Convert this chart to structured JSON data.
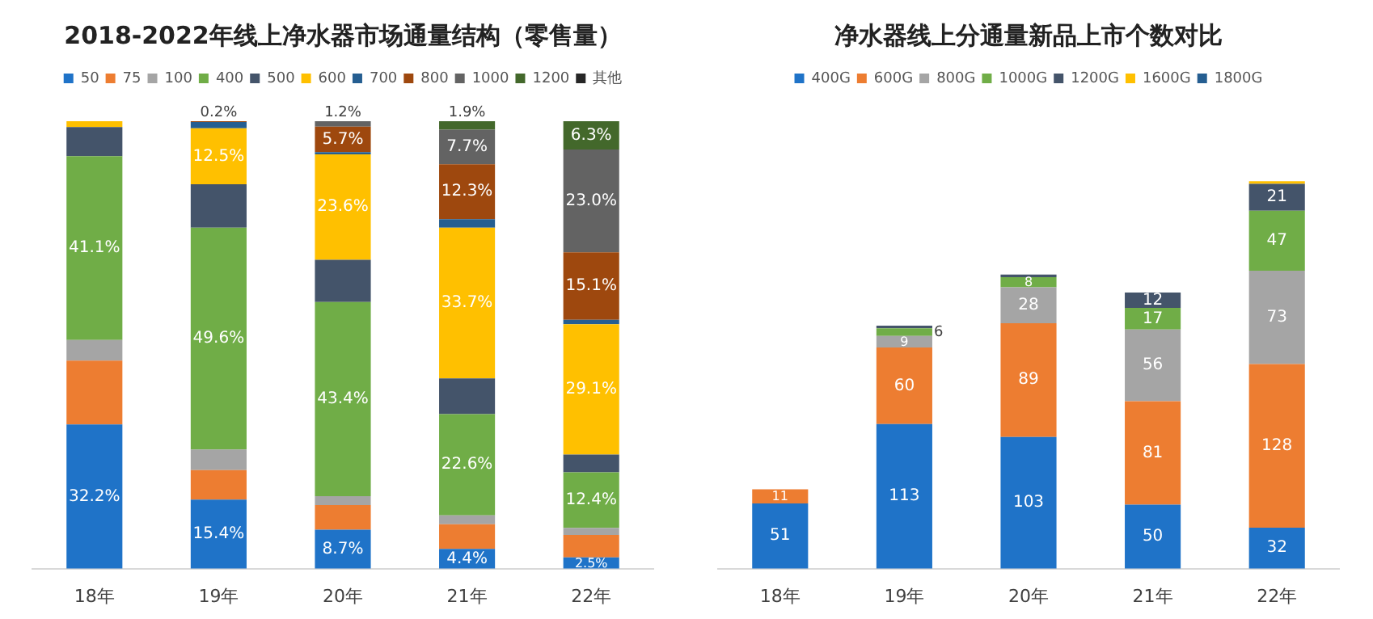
{
  "chart_data": [
    {
      "type": "bar",
      "title": "2018-2022年线上净水器市场通量结构（零售量）",
      "categories": [
        "18年",
        "19年",
        "20年",
        "21年",
        "22年"
      ],
      "stacked": true,
      "ylim": [
        0,
        100
      ],
      "tick_labels": "x",
      "legend": "top",
      "grid": false,
      "series": [
        {
          "name": "50",
          "color": "#1f73c8",
          "values": [
            32.2,
            15.4,
            8.7,
            4.4,
            2.5
          ],
          "value_labels": [
            "32.2%",
            "15.4%",
            "8.7%",
            "4.4%",
            "2.5%"
          ]
        },
        {
          "name": "75",
          "color": "#ed7d31",
          "values": [
            14.3,
            6.6,
            5.5,
            5.5,
            5.0
          ],
          "value_labels": [
            null,
            null,
            null,
            null,
            null
          ]
        },
        {
          "name": "100",
          "color": "#a5a5a5",
          "values": [
            4.6,
            4.6,
            2.0,
            2.0,
            1.6
          ],
          "value_labels": [
            null,
            null,
            null,
            null,
            null
          ]
        },
        {
          "name": "400",
          "color": "#70ad47",
          "values": [
            41.1,
            49.6,
            43.4,
            22.6,
            12.4
          ],
          "value_labels": [
            "41.1%",
            "49.6%",
            "43.4%",
            "22.6%",
            "12.4%"
          ]
        },
        {
          "name": "500",
          "color": "#44546a",
          "values": [
            6.5,
            9.7,
            9.4,
            8.0,
            4.0
          ],
          "value_labels": [
            null,
            null,
            null,
            null,
            null
          ]
        },
        {
          "name": "600",
          "color": "#ffc000",
          "values": [
            1.3,
            12.5,
            23.6,
            33.7,
            29.1
          ],
          "value_labels": [
            null,
            "12.5%",
            "23.6%",
            "33.7%",
            "29.1%"
          ]
        },
        {
          "name": "700",
          "color": "#255e91",
          "values": [
            0,
            1.4,
            0.5,
            1.9,
            1.0
          ],
          "value_labels": [
            null,
            null,
            null,
            null,
            null
          ]
        },
        {
          "name": "800",
          "color": "#9e480e",
          "values": [
            0,
            0.2,
            5.7,
            12.3,
            15.1
          ],
          "value_labels": [
            null,
            "0.2%",
            "5.7%",
            "12.3%",
            "15.1%"
          ]
        },
        {
          "name": "1000",
          "color": "#636363",
          "values": [
            0,
            0,
            1.2,
            7.7,
            23.0
          ],
          "value_labels": [
            null,
            null,
            "1.2%",
            "7.7%",
            "23.0%"
          ]
        },
        {
          "name": "1200",
          "color": "#43682b",
          "values": [
            0,
            0,
            0,
            1.9,
            6.3
          ],
          "value_labels": [
            null,
            null,
            null,
            "1.9%",
            "6.3%"
          ]
        },
        {
          "name": "其他",
          "color": "#262626",
          "values": [
            0,
            0,
            0,
            0,
            0
          ],
          "value_labels": [
            null,
            null,
            null,
            null,
            null
          ]
        }
      ]
    },
    {
      "type": "bar",
      "title": "净水器线上分通量新品上市个数对比",
      "categories": [
        "18年",
        "19年",
        "20年",
        "21年",
        "22年"
      ],
      "stacked": true,
      "tick_labels": "x",
      "legend": "top",
      "grid": false,
      "series": [
        {
          "name": "400G",
          "color": "#1f73c8",
          "values": [
            51,
            113,
            103,
            50,
            32
          ],
          "value_labels": [
            "51",
            "113",
            "103",
            "50",
            "32"
          ]
        },
        {
          "name": "600G",
          "color": "#ed7d31",
          "values": [
            11,
            60,
            89,
            81,
            128
          ],
          "value_labels": [
            "11",
            "60",
            "89",
            "81",
            "128"
          ]
        },
        {
          "name": "800G",
          "color": "#a5a5a5",
          "values": [
            0,
            9,
            28,
            56,
            73
          ],
          "value_labels": [
            null,
            "9",
            "28",
            "56",
            "73"
          ]
        },
        {
          "name": "1000G",
          "color": "#70ad47",
          "values": [
            0,
            6,
            8,
            17,
            47
          ],
          "value_labels": [
            null,
            "6",
            "8",
            "17",
            "47"
          ]
        },
        {
          "name": "1200G",
          "color": "#44546a",
          "values": [
            0,
            2,
            2,
            12,
            21
          ],
          "value_labels": [
            null,
            null,
            null,
            "12",
            "21"
          ]
        },
        {
          "name": "1600G",
          "color": "#ffc000",
          "values": [
            0,
            0,
            0,
            0,
            2
          ],
          "value_labels": [
            null,
            null,
            null,
            null,
            null
          ]
        },
        {
          "name": "1800G",
          "color": "#255e91",
          "values": [
            0,
            0,
            0,
            0,
            0
          ],
          "value_labels": [
            null,
            null,
            null,
            null,
            null
          ]
        }
      ]
    }
  ]
}
